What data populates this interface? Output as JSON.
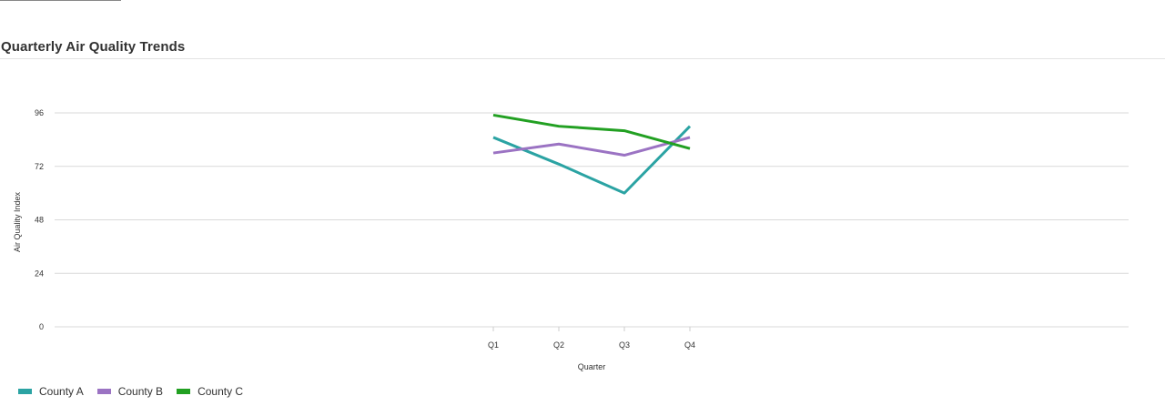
{
  "chart_data": {
    "type": "line",
    "title": "Quarterly Air Quality Trends",
    "xlabel": "Quarter",
    "ylabel": "Air Quality Index",
    "categories": [
      "Q1",
      "Q2",
      "Q3",
      "Q4"
    ],
    "ylim": [
      0,
      96
    ],
    "yticks": [
      0,
      24,
      48,
      72,
      96
    ],
    "grid": true,
    "legend_position": "bottom-left",
    "series": [
      {
        "name": "County A",
        "color": "#2ba3a3",
        "values": [
          85,
          73,
          60,
          90
        ]
      },
      {
        "name": "County B",
        "color": "#9b73c3",
        "values": [
          78,
          82,
          77,
          85
        ]
      },
      {
        "name": "County C",
        "color": "#22a022",
        "values": [
          95,
          90,
          88,
          80
        ]
      }
    ]
  }
}
